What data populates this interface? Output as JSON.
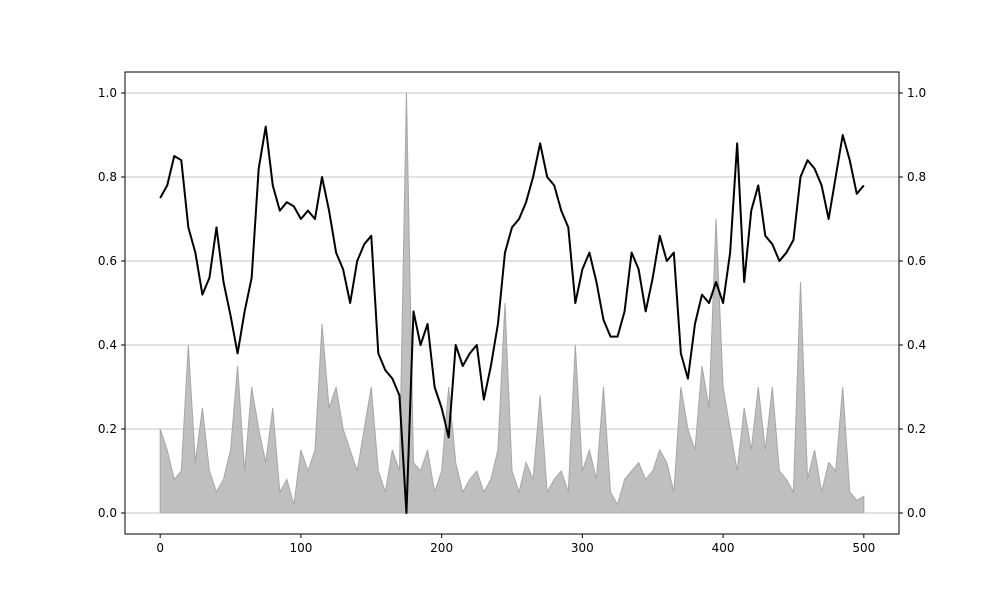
{
  "chart_data": {
    "type": "line",
    "x": [
      0,
      5,
      10,
      15,
      20,
      25,
      30,
      35,
      40,
      45,
      50,
      55,
      60,
      65,
      70,
      75,
      80,
      85,
      90,
      95,
      100,
      105,
      110,
      115,
      120,
      125,
      130,
      135,
      140,
      145,
      150,
      155,
      160,
      165,
      170,
      175,
      180,
      185,
      190,
      195,
      200,
      205,
      210,
      215,
      220,
      225,
      230,
      235,
      240,
      245,
      250,
      255,
      260,
      265,
      270,
      275,
      280,
      285,
      290,
      295,
      300,
      305,
      310,
      315,
      320,
      325,
      330,
      335,
      340,
      345,
      350,
      355,
      360,
      365,
      370,
      375,
      380,
      385,
      390,
      395,
      400,
      405,
      410,
      415,
      420,
      425,
      430,
      435,
      440,
      445,
      450,
      455,
      460,
      465,
      470,
      475,
      480,
      485,
      490,
      495,
      500
    ],
    "series": [
      {
        "color": "#000000",
        "values": [
          0.75,
          0.78,
          0.85,
          0.84,
          0.68,
          0.62,
          0.52,
          0.56,
          0.68,
          0.55,
          0.47,
          0.38,
          0.48,
          0.56,
          0.82,
          0.92,
          0.78,
          0.72,
          0.74,
          0.73,
          0.7,
          0.72,
          0.7,
          0.8,
          0.72,
          0.62,
          0.58,
          0.5,
          0.6,
          0.64,
          0.66,
          0.38,
          0.34,
          0.32,
          0.28,
          0.0,
          0.48,
          0.4,
          0.45,
          0.3,
          0.25,
          0.18,
          0.4,
          0.35,
          0.38,
          0.4,
          0.27,
          0.35,
          0.45,
          0.62,
          0.68,
          0.7,
          0.74,
          0.8,
          0.88,
          0.8,
          0.78,
          0.72,
          0.68,
          0.5,
          0.58,
          0.62,
          0.55,
          0.46,
          0.42,
          0.42,
          0.48,
          0.62,
          0.58,
          0.48,
          0.56,
          0.66,
          0.6,
          0.62,
          0.38,
          0.32,
          0.45,
          0.52,
          0.5,
          0.55,
          0.5,
          0.62,
          0.88,
          0.55,
          0.72,
          0.78,
          0.66,
          0.64,
          0.6,
          0.62,
          0.65,
          0.8,
          0.84,
          0.82,
          0.78,
          0.7,
          0.8,
          0.9,
          0.84,
          0.76,
          0.78
        ]
      },
      {
        "color": "#bfbfbf",
        "axis": "y2",
        "values": [
          0.2,
          0.15,
          0.08,
          0.1,
          0.4,
          0.12,
          0.25,
          0.1,
          0.05,
          0.08,
          0.15,
          0.35,
          0.1,
          0.3,
          0.2,
          0.12,
          0.25,
          0.05,
          0.08,
          0.02,
          0.15,
          0.1,
          0.15,
          0.45,
          0.25,
          0.3,
          0.2,
          0.15,
          0.1,
          0.2,
          0.3,
          0.1,
          0.05,
          0.15,
          0.1,
          1.0,
          0.12,
          0.1,
          0.15,
          0.05,
          0.1,
          0.3,
          0.12,
          0.05,
          0.08,
          0.1,
          0.05,
          0.08,
          0.15,
          0.5,
          0.1,
          0.05,
          0.12,
          0.08,
          0.28,
          0.05,
          0.08,
          0.1,
          0.05,
          0.4,
          0.1,
          0.15,
          0.08,
          0.3,
          0.05,
          0.02,
          0.08,
          0.1,
          0.12,
          0.08,
          0.1,
          0.15,
          0.12,
          0.05,
          0.3,
          0.2,
          0.15,
          0.35,
          0.25,
          0.7,
          0.3,
          0.2,
          0.1,
          0.25,
          0.15,
          0.3,
          0.15,
          0.3,
          0.1,
          0.08,
          0.05,
          0.55,
          0.08,
          0.15,
          0.05,
          0.12,
          0.1,
          0.3,
          0.05,
          0.03,
          0.04
        ]
      }
    ],
    "xlim": [
      -25,
      525
    ],
    "xticks": [
      0,
      100,
      200,
      300,
      400,
      500
    ],
    "ylim": [
      -0.05,
      1.05
    ],
    "yticks": [
      {
        "value": 0.0,
        "label": "0.0"
      },
      0.2,
      0.4,
      0.6,
      0.8,
      {
        "value": 1.0,
        "label": "1.0"
      }
    ],
    "y2lim": [
      -0.05,
      1.05
    ],
    "y2ticks": [
      {
        "value": 0.0,
        "label": "0.0"
      },
      0.2,
      0.4,
      0.6,
      0.8,
      {
        "value": 1.0,
        "label": "1.0"
      }
    ],
    "grid": true
  }
}
